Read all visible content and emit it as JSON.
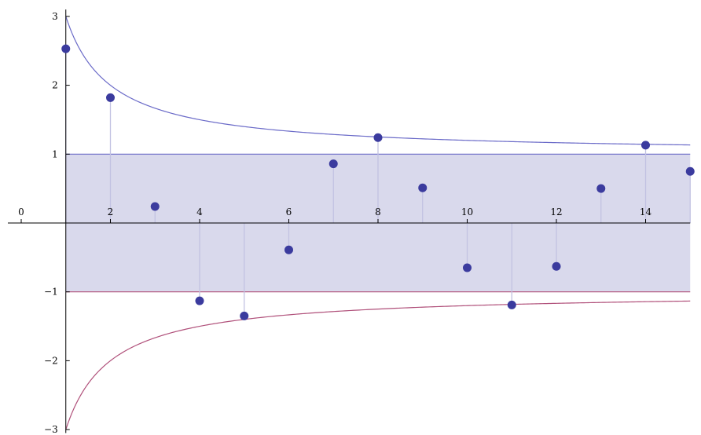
{
  "chart_data": {
    "type": "scatter",
    "title": "",
    "xlabel": "",
    "ylabel": "",
    "xlim": [
      -0.5,
      15
    ],
    "ylim": [
      -3,
      3.1
    ],
    "grid": false,
    "x_ticks": [
      0,
      2,
      4,
      6,
      8,
      10,
      12,
      14
    ],
    "y_ticks": [
      -3,
      -2,
      -1,
      1,
      2,
      3
    ],
    "points": [
      {
        "x": 1,
        "y": 2.53
      },
      {
        "x": 2,
        "y": 1.82
      },
      {
        "x": 3,
        "y": 0.24
      },
      {
        "x": 4,
        "y": -1.13
      },
      {
        "x": 5,
        "y": -1.35
      },
      {
        "x": 6,
        "y": -0.39
      },
      {
        "x": 7,
        "y": 0.86
      },
      {
        "x": 8,
        "y": 1.24
      },
      {
        "x": 9,
        "y": 0.51
      },
      {
        "x": 10,
        "y": -0.65
      },
      {
        "x": 11,
        "y": -1.19
      },
      {
        "x": 12,
        "y": -0.63
      },
      {
        "x": 13,
        "y": 0.5
      },
      {
        "x": 14,
        "y": 1.13
      },
      {
        "x": 15,
        "y": 0.75
      }
    ],
    "band": {
      "lower": -1,
      "upper": 1
    },
    "envelope": {
      "upper_formula": "1 + 2/x",
      "lower_formula": "-(1 + 2/x)",
      "x_from": 1,
      "x_to": 15
    },
    "colors": {
      "points": "#3b3b9e",
      "upper_curve": "#6a6ac8",
      "lower_curve": "#b0507a",
      "band_fill": "#d9d9ec",
      "stems": "#c2c2e2"
    }
  }
}
